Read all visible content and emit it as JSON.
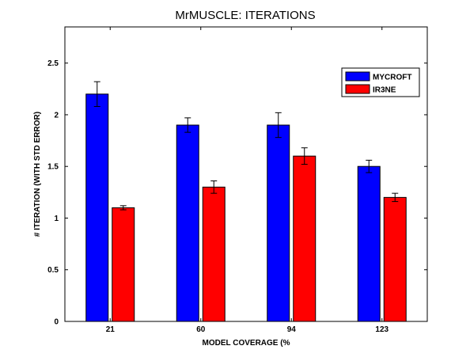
{
  "chart_data": {
    "type": "bar",
    "title": "MrMUSCLE: ITERATIONS",
    "xlabel": "MODEL COVERAGE (%",
    "ylabel": "# ITERATION (WITH STD ERROR)",
    "categories": [
      "21",
      "60",
      "94",
      "123"
    ],
    "ylim": [
      0,
      2.85
    ],
    "yticks": [
      0,
      0.5,
      1,
      1.5,
      2,
      2.5
    ],
    "grid": false,
    "legend_position": "top-right",
    "series": [
      {
        "name": "MYCROFT",
        "color": "#0000ff",
        "values": [
          2.2,
          1.9,
          1.9,
          1.5
        ],
        "errors": [
          0.12,
          0.07,
          0.12,
          0.06
        ]
      },
      {
        "name": "IR3NE",
        "color": "#ff0000",
        "values": [
          1.1,
          1.3,
          1.6,
          1.2
        ],
        "errors": [
          0.02,
          0.06,
          0.08,
          0.04
        ]
      }
    ]
  }
}
